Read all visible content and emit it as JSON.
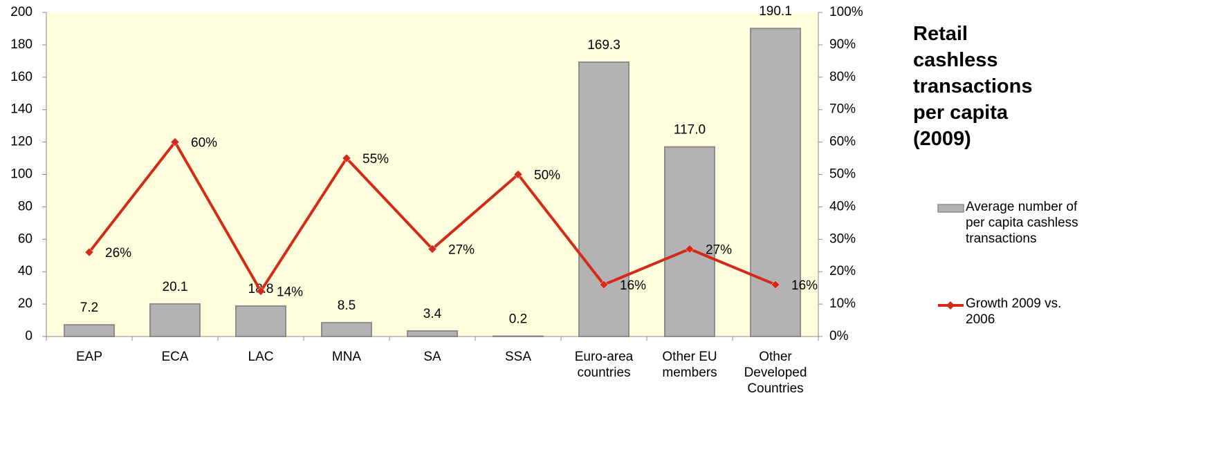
{
  "chart_data": {
    "type": "bar",
    "title": "Retail\ncashless\ntransactions\nper capita\n(2009)",
    "categories": [
      "EAP",
      "ECA",
      "LAC",
      "MNA",
      "SA",
      "SSA",
      "Euro-area\ncountries",
      "Other EU\nmembers",
      "Other\nDeveloped\nCountries"
    ],
    "series": [
      {
        "name": "Average number of\nper capita cashless\ntransactions",
        "type": "bar",
        "color": "#b3b3b3",
        "values": [
          7.2,
          20.1,
          18.8,
          8.5,
          3.4,
          0.2,
          169.3,
          117.0,
          190.1
        ],
        "value_labels": [
          "7.2",
          "20.1",
          "18.8",
          "8.5",
          "3.4",
          "0.2",
          "169.3",
          "117.0",
          "190.1"
        ]
      },
      {
        "name": "Growth 2009 vs.\n2006",
        "type": "line",
        "axis": "y2",
        "color": "#d42a1a",
        "values": [
          26,
          60,
          14,
          55,
          27,
          50,
          16,
          27,
          16
        ],
        "value_labels": [
          "26%",
          "60%",
          "14%",
          "55%",
          "27%",
          "50%",
          "16%",
          "27%",
          "16%"
        ]
      }
    ],
    "ylim": [
      0,
      200
    ],
    "yticks": [
      0,
      20,
      40,
      60,
      80,
      100,
      120,
      140,
      160,
      180,
      200
    ],
    "y2lim": [
      0,
      100
    ],
    "y2ticks": [
      {
        "value": 0,
        "label": "0%"
      },
      {
        "value": 10,
        "label": "10%"
      },
      {
        "value": 20,
        "label": "20%"
      },
      {
        "value": 30,
        "label": "30%"
      },
      {
        "value": 40,
        "label": "40%"
      },
      {
        "value": 50,
        "label": "50%"
      },
      {
        "value": 60,
        "label": "60%"
      },
      {
        "value": 70,
        "label": "70%"
      },
      {
        "value": 80,
        "label": "80%"
      },
      {
        "value": 90,
        "label": "90%"
      },
      {
        "value": 100,
        "label": "100%"
      }
    ],
    "plot_background": "#ffffdd",
    "legend": "right"
  }
}
